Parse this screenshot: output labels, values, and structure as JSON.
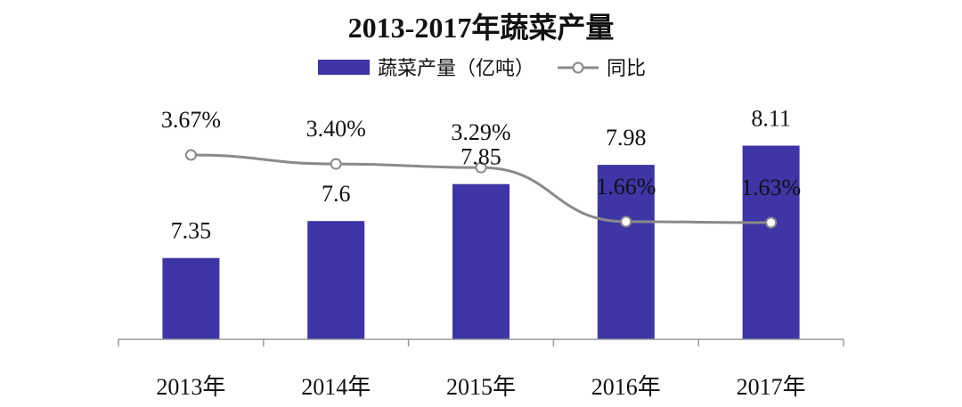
{
  "chart_data": {
    "type": "bar",
    "title": "2013-2017年蔬菜产量",
    "categories": [
      "2013年",
      "2014年",
      "2015年",
      "2016年",
      "2017年"
    ],
    "series": [
      {
        "name": "蔬菜产量（亿吨）",
        "kind": "bar",
        "color": "#3e35a6",
        "values": [
          7.35,
          7.6,
          7.85,
          7.98,
          8.11
        ],
        "labels": [
          "7.35",
          "7.6",
          "7.85",
          "7.98",
          "8.11"
        ]
      },
      {
        "name": "同比",
        "kind": "line",
        "color": "#8a8a8a",
        "values": [
          3.67,
          3.4,
          3.29,
          1.66,
          1.63
        ],
        "labels": [
          "3.67%",
          "3.40%",
          "3.29%",
          "1.66%",
          "1.63%"
        ]
      }
    ],
    "legend_position": "top-center",
    "grid": false
  }
}
